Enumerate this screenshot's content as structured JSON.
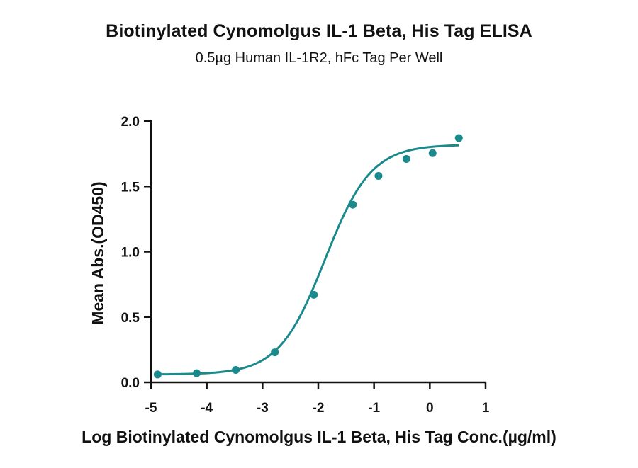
{
  "chart_data": {
    "type": "scatter",
    "title": "Biotinylated Cynomolgus IL-1 Beta, His Tag ELISA",
    "subtitle": "0.5µg Human IL-1R2, hFc Tag Per Well",
    "xlabel": "Log Biotinylated Cynomolgus IL-1 Beta, His Tag Conc.(µg/ml)",
    "ylabel": "Mean Abs.(OD450)",
    "xlim": [
      -5,
      1
    ],
    "ylim": [
      0,
      2
    ],
    "x_ticks": [
      -5,
      -4,
      -3,
      -2,
      -1,
      0,
      1
    ],
    "y_ticks": [
      0,
      0.5,
      1,
      1.5,
      2
    ],
    "x_tick_labels": [
      "-5",
      "-4",
      "-3",
      "-2",
      "-1",
      "0",
      "1"
    ],
    "y_tick_labels": [
      "0.0",
      "0.5",
      "1.0",
      "1.5",
      "2.0"
    ],
    "grid": false,
    "color": "#1a8a8c",
    "series": [
      {
        "points": [
          {
            "x": -4.88,
            "y": 0.06
          },
          {
            "x": -4.18,
            "y": 0.07
          },
          {
            "x": -3.48,
            "y": 0.095
          },
          {
            "x": -2.78,
            "y": 0.23
          },
          {
            "x": -2.08,
            "y": 0.67
          },
          {
            "x": -1.38,
            "y": 1.36
          },
          {
            "x": -0.92,
            "y": 1.58
          },
          {
            "x": -0.42,
            "y": 1.71
          },
          {
            "x": 0.05,
            "y": 1.755
          },
          {
            "x": 0.52,
            "y": 1.87
          }
        ]
      }
    ],
    "fit_curve": {
      "model": "4PL",
      "bottom": 0.06,
      "top": 1.82,
      "log_ec50": -1.88,
      "hill_slope": 1.05,
      "x_range": [
        -4.88,
        0.52
      ]
    }
  }
}
